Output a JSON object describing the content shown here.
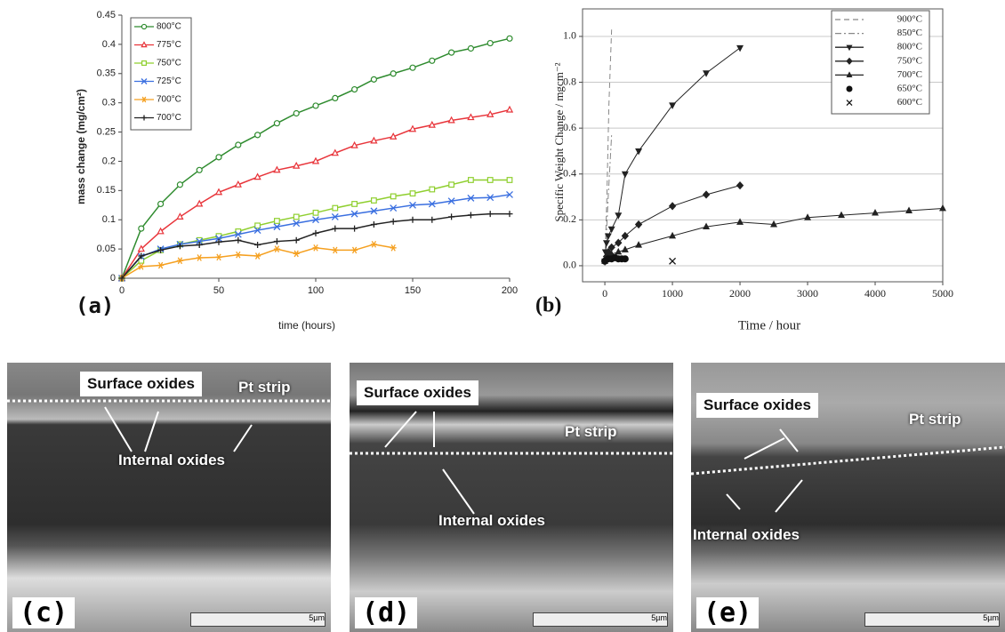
{
  "chart_data": [
    {
      "type": "line",
      "label": "(a)",
      "x_label": "time (hours)",
      "y_label": "mass change (mg/cm²)",
      "x": [
        0,
        10,
        20,
        30,
        40,
        50,
        60,
        70,
        80,
        90,
        100,
        110,
        120,
        130,
        140,
        150,
        160,
        170,
        180,
        190,
        200
      ],
      "xlim": [
        0,
        200
      ],
      "xticks": [
        0,
        50,
        100,
        150,
        200
      ],
      "ylim": [
        0,
        0.45
      ],
      "yticks": [
        0,
        0.05,
        0.1,
        0.15,
        0.2,
        0.25,
        0.3,
        0.35,
        0.4,
        0.45
      ],
      "grid": false,
      "legend": "upper left",
      "series": [
        {
          "name": "800°C",
          "color": "#2e8b2e",
          "marker": "circle-open",
          "linestyle": "solid",
          "values": [
            0,
            0.085,
            0.127,
            0.16,
            0.185,
            0.207,
            0.228,
            0.245,
            0.265,
            0.282,
            0.295,
            0.308,
            0.323,
            0.34,
            0.35,
            0.36,
            0.372,
            0.386,
            0.393,
            0.402,
            0.41
          ]
        },
        {
          "name": "775°C",
          "color": "#e8343a",
          "marker": "triangle-open",
          "linestyle": "solid",
          "values": [
            0,
            0.05,
            0.08,
            0.105,
            0.127,
            0.147,
            0.16,
            0.173,
            0.185,
            0.192,
            0.2,
            0.214,
            0.227,
            0.235,
            0.242,
            0.255,
            0.262,
            0.27,
            0.275,
            0.28,
            0.288
          ]
        },
        {
          "name": "750°C",
          "color": "#8fcf2f",
          "marker": "square-open",
          "linestyle": "solid",
          "values": [
            0,
            0.03,
            0.048,
            0.058,
            0.065,
            0.072,
            0.08,
            0.09,
            0.098,
            0.105,
            0.112,
            0.12,
            0.127,
            0.133,
            0.14,
            0.145,
            0.152,
            0.16,
            0.168,
            0.168,
            0.168
          ]
        },
        {
          "name": "725°C",
          "color": "#3a6fe0",
          "marker": "x",
          "linestyle": "solid",
          "values": [
            0,
            0.037,
            0.05,
            0.058,
            0.063,
            0.068,
            0.075,
            0.082,
            0.088,
            0.094,
            0.1,
            0.105,
            0.11,
            0.115,
            0.12,
            0.125,
            0.127,
            0.132,
            0.137,
            0.138,
            0.143
          ]
        },
        {
          "name": "700°C",
          "color": "#f5a020",
          "marker": "asterisk",
          "linestyle": "solid",
          "values": [
            0,
            0.02,
            0.022,
            0.03,
            0.035,
            0.036,
            0.04,
            0.038,
            0.05,
            0.042,
            0.052,
            0.048,
            0.048,
            0.058,
            0.052,
            null,
            null,
            null,
            null,
            null,
            null
          ]
        },
        {
          "name": "700°C",
          "color": "#222222",
          "marker": "plus",
          "linestyle": "solid",
          "values": [
            0,
            0.038,
            0.048,
            0.055,
            0.057,
            0.062,
            0.065,
            0.057,
            0.063,
            0.065,
            0.077,
            0.085,
            0.085,
            0.092,
            0.097,
            0.1,
            0.1,
            0.105,
            0.108,
            0.11,
            0.11
          ]
        }
      ]
    },
    {
      "type": "line",
      "label": "(b)",
      "x_label": "Time / hour",
      "y_label": "Specific Weight Change / mgcm⁻²",
      "xlim": [
        -330,
        5000
      ],
      "xticks": [
        0,
        1000,
        2000,
        3000,
        4000,
        5000
      ],
      "ylim": [
        -0.07,
        1.12
      ],
      "yticks": [
        {
          "value": 0,
          "label": "0.0"
        },
        {
          "value": 0.2,
          "label": "0.2"
        },
        {
          "value": 0.4,
          "label": "0.4"
        },
        {
          "value": 0.6,
          "label": "0.6"
        },
        {
          "value": 0.8,
          "label": "0.8"
        },
        {
          "value": 1,
          "label": "1.0"
        }
      ],
      "grid": true,
      "legend": "upper right",
      "series": [
        {
          "name": "900°C",
          "color": "#888888",
          "marker": "none",
          "linestyle": "dashed",
          "x": [
            0,
            30,
            60,
            100
          ],
          "values": [
            0,
            0.3,
            0.7,
            1.03
          ]
        },
        {
          "name": "850°C",
          "color": "#888888",
          "marker": "none",
          "linestyle": "dashdot",
          "x": [
            0,
            50,
            100
          ],
          "values": [
            0,
            0.3,
            0.57
          ]
        },
        {
          "name": "800°C",
          "color": "#222222",
          "marker": "triangle-down",
          "linestyle": "solid",
          "x": [
            0,
            10,
            25,
            50,
            100,
            200,
            300,
            500,
            1000,
            1500,
            2000
          ],
          "values": [
            0.02,
            0.06,
            0.1,
            0.13,
            0.16,
            0.22,
            0.4,
            0.5,
            0.7,
            0.84,
            0.95
          ]
        },
        {
          "name": "750°C",
          "color": "#222222",
          "marker": "diamond",
          "linestyle": "solid",
          "x": [
            0,
            25,
            50,
            100,
            200,
            300,
            500,
            1000,
            1500,
            2000
          ],
          "values": [
            0.02,
            0.04,
            0.06,
            0.08,
            0.1,
            0.13,
            0.18,
            0.26,
            0.31,
            0.35
          ]
        },
        {
          "name": "700°C",
          "color": "#222222",
          "marker": "triangle",
          "linestyle": "solid",
          "x": [
            0,
            25,
            50,
            100,
            200,
            300,
            500,
            1000,
            1500,
            2000,
            2500,
            3000,
            3500,
            4000,
            4500,
            5000
          ],
          "values": [
            0.02,
            0.03,
            0.04,
            0.05,
            0.06,
            0.07,
            0.09,
            0.13,
            0.17,
            0.19,
            0.18,
            0.21,
            0.22,
            0.23,
            0.24,
            0.25
          ]
        },
        {
          "name": "650°C",
          "color": "#111111",
          "marker": "dot",
          "linestyle": "none",
          "x": [
            0,
            50,
            100,
            150,
            200,
            250,
            300
          ],
          "values": [
            0.02,
            0.03,
            0.03,
            0.035,
            0.03,
            0.03,
            0.03
          ]
        },
        {
          "name": "600°C",
          "color": "#111111",
          "marker": "x",
          "linestyle": "none",
          "x": [
            1000
          ],
          "values": [
            0.02
          ]
        }
      ]
    }
  ],
  "images": [
    {
      "label": "(c)",
      "surface": "Surface oxides",
      "strip": "Pt strip",
      "internal": "Internal oxides",
      "scale": "5µm"
    },
    {
      "label": "(d)",
      "surface": "Surface oxides",
      "strip": "Pt strip",
      "internal": "Internal oxides",
      "scale": "5µm"
    },
    {
      "label": "(e)",
      "surface": "Surface oxides",
      "strip": "Pt strip",
      "internal": "Internal oxides",
      "scale": "5µm"
    }
  ]
}
